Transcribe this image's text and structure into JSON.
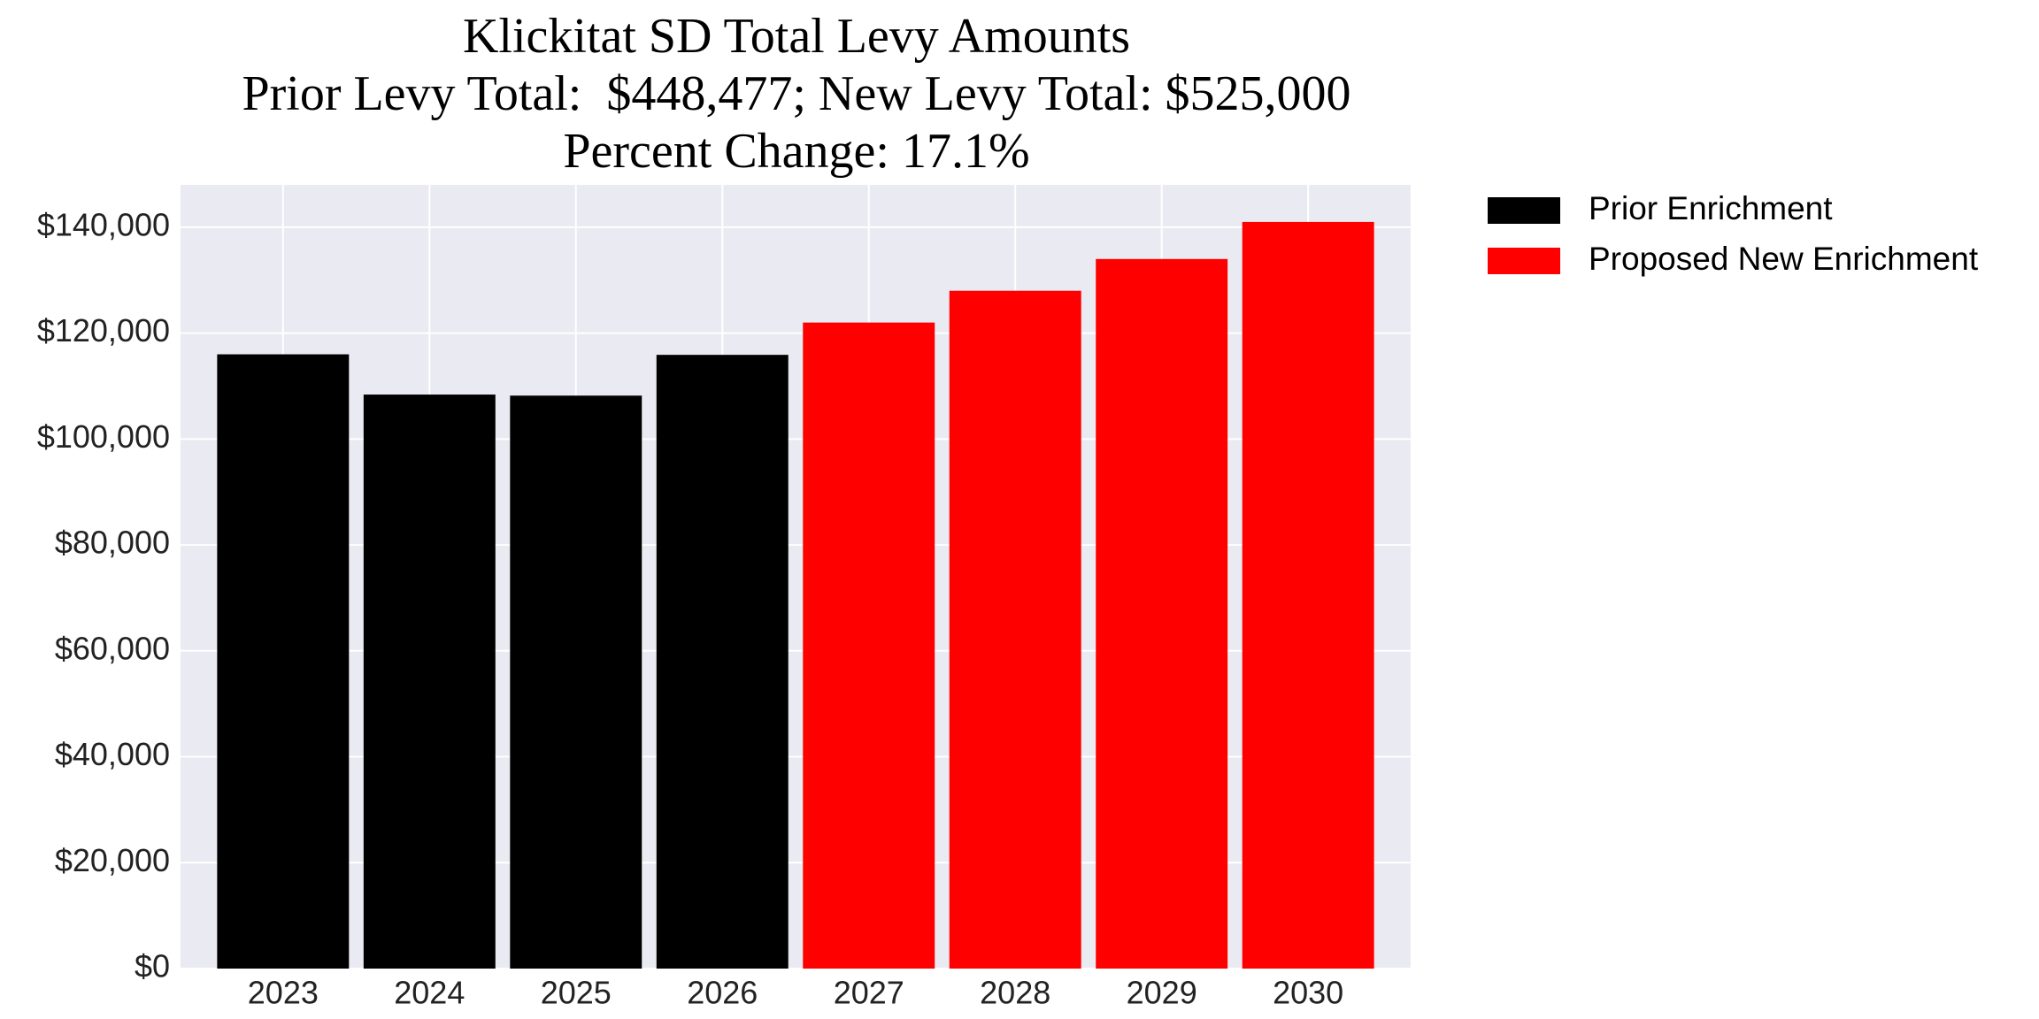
{
  "chart_data": {
    "type": "bar",
    "title": [
      "Klickitat SD Total Levy Amounts",
      "Prior Levy Total:  $448,477; New Levy Total: $525,000",
      "Percent Change: 17.1%"
    ],
    "categories": [
      "2023",
      "2024",
      "2025",
      "2026",
      "2027",
      "2028",
      "2029",
      "2030"
    ],
    "series": [
      {
        "name": "Prior Enrichment",
        "color": "#000000",
        "values": [
          116000,
          108400,
          108200,
          115900,
          null,
          null,
          null,
          null
        ]
      },
      {
        "name": "Proposed New Enrichment",
        "color": "#ff0000",
        "values": [
          null,
          null,
          null,
          null,
          122000,
          128000,
          134000,
          141000
        ]
      }
    ],
    "ylim": [
      0,
      148000
    ],
    "yticks": [
      {
        "value": 0,
        "label": "$0"
      },
      {
        "value": 20000,
        "label": "$20,000"
      },
      {
        "value": 40000,
        "label": "$40,000"
      },
      {
        "value": 60000,
        "label": "$60,000"
      },
      {
        "value": 80000,
        "label": "$80,000"
      },
      {
        "value": 100000,
        "label": "$100,000"
      },
      {
        "value": 120000,
        "label": "$120,000"
      },
      {
        "value": 140000,
        "label": "$140,000"
      }
    ],
    "grid": true,
    "legend": "outside right"
  }
}
